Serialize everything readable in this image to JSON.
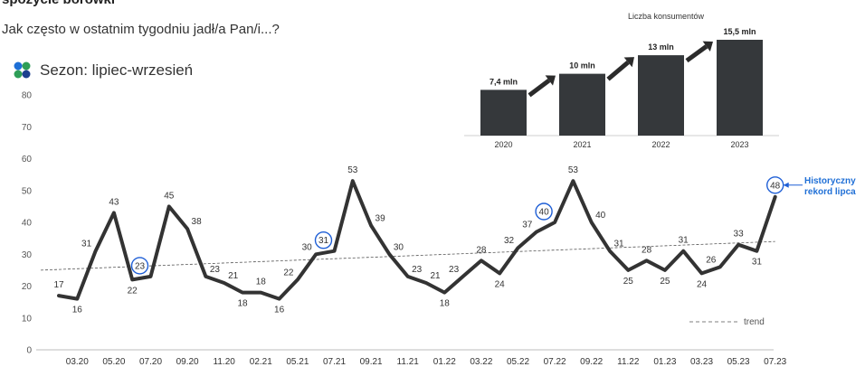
{
  "header": {
    "title_cut": "spożycie borówki",
    "question": "Jak często w ostatnim tygodniu jadł/a Pan/i...?",
    "season": "Sezon: lipiec-wrzesień"
  },
  "legend": {
    "trend_label": "trend"
  },
  "annotation": {
    "record_line1": "Historyczny",
    "record_line2": "rekord lipca"
  },
  "colors": {
    "line": "#333333",
    "highlight": "#1f5fd6",
    "bar": "#35383b",
    "arrow": "#2b2b2b",
    "annotation_text": "#1f6fd6"
  },
  "chart_data": [
    {
      "type": "line",
      "title": "",
      "ylim": [
        0,
        80
      ],
      "yticks": [
        0,
        10,
        20,
        30,
        40,
        50,
        60,
        70,
        80
      ],
      "xtick_labels": [
        "03.20",
        "05.20",
        "07.20",
        "09.20",
        "11.20",
        "02.21",
        "05.21",
        "07.21",
        "09.21",
        "11.21",
        "01.22",
        "03.22",
        "05.22",
        "07.22",
        "09.22",
        "11.22",
        "01.23",
        "03.23",
        "05.23",
        "07.23"
      ],
      "series": [
        {
          "values": [
            17,
            16,
            31,
            43,
            22,
            23,
            45,
            38,
            23,
            21,
            18,
            18,
            16,
            22,
            30,
            31,
            53,
            39,
            30,
            23,
            21,
            18,
            23,
            28,
            24,
            32,
            37,
            40,
            53,
            40,
            31,
            25,
            28,
            25,
            31,
            24,
            26,
            33,
            31,
            48
          ],
          "labels": [
            "17",
            "16",
            "31",
            "43",
            "22",
            "23",
            "45",
            "38",
            "23",
            "21",
            "18",
            "18",
            "16",
            "22",
            "30",
            "31",
            "53",
            "39",
            "30",
            "23",
            "21",
            "18",
            "23",
            "28",
            "24",
            "32",
            "37",
            "40",
            "53",
            "40",
            "31",
            "25",
            "28",
            "25",
            "31",
            "24",
            "26",
            "33",
            "31",
            "48"
          ],
          "circled": [
            5,
            15,
            27,
            39
          ]
        }
      ],
      "trend": {
        "start": 25,
        "end": 34
      },
      "grid": false
    },
    {
      "type": "bar",
      "title": "Liczba konsumentów",
      "categories": [
        "2020",
        "2021",
        "2022",
        "2023"
      ],
      "values": [
        7.4,
        10,
        13,
        15.5
      ],
      "value_labels": [
        "7,4 mln",
        "10 mln",
        "13 mln",
        "15,5 mln"
      ],
      "ylim": [
        0,
        15.5
      ]
    }
  ]
}
